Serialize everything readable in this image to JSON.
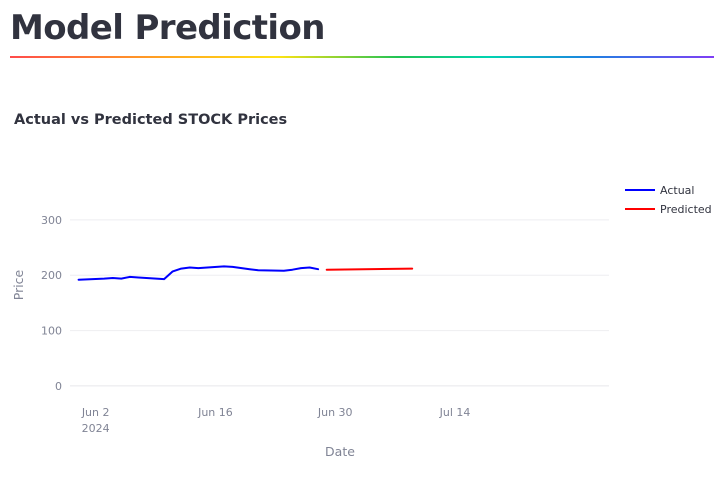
{
  "page": {
    "title": "Model Prediction"
  },
  "chart_data": {
    "type": "line",
    "title": "Actual vs Predicted STOCK Prices",
    "xlabel": "Date",
    "ylabel": "Price",
    "xlim": [
      "2024-05-30",
      "2024-08-01"
    ],
    "ylim": [
      -20,
      345
    ],
    "y_ticks": [
      0,
      100,
      200,
      300
    ],
    "x_ticks": [
      {
        "date": "2024-06-02",
        "label": "Jun 2",
        "sub": "2024"
      },
      {
        "date": "2024-06-16",
        "label": "Jun 16",
        "sub": ""
      },
      {
        "date": "2024-06-30",
        "label": "Jun 30",
        "sub": ""
      },
      {
        "date": "2024-07-14",
        "label": "Jul 14",
        "sub": ""
      }
    ],
    "grid": true,
    "legend_position": "top-right",
    "series": [
      {
        "name": "Actual",
        "color": "#0000ff",
        "x": [
          "2024-05-31",
          "2024-06-03",
          "2024-06-04",
          "2024-06-05",
          "2024-06-06",
          "2024-06-07",
          "2024-06-10",
          "2024-06-11",
          "2024-06-12",
          "2024-06-13",
          "2024-06-14",
          "2024-06-17",
          "2024-06-18",
          "2024-06-20",
          "2024-06-21",
          "2024-06-24",
          "2024-06-25",
          "2024-06-26",
          "2024-06-27",
          "2024-06-28"
        ],
        "y": [
          192,
          194,
          195,
          194,
          197,
          196,
          193,
          207,
          212,
          214,
          213,
          216,
          215,
          211,
          209,
          208,
          210,
          213,
          214,
          211
        ]
      },
      {
        "name": "Predicted",
        "color": "#ff0000",
        "x": [
          "2024-06-29",
          "2024-07-09"
        ],
        "y": [
          210,
          212
        ]
      }
    ]
  }
}
